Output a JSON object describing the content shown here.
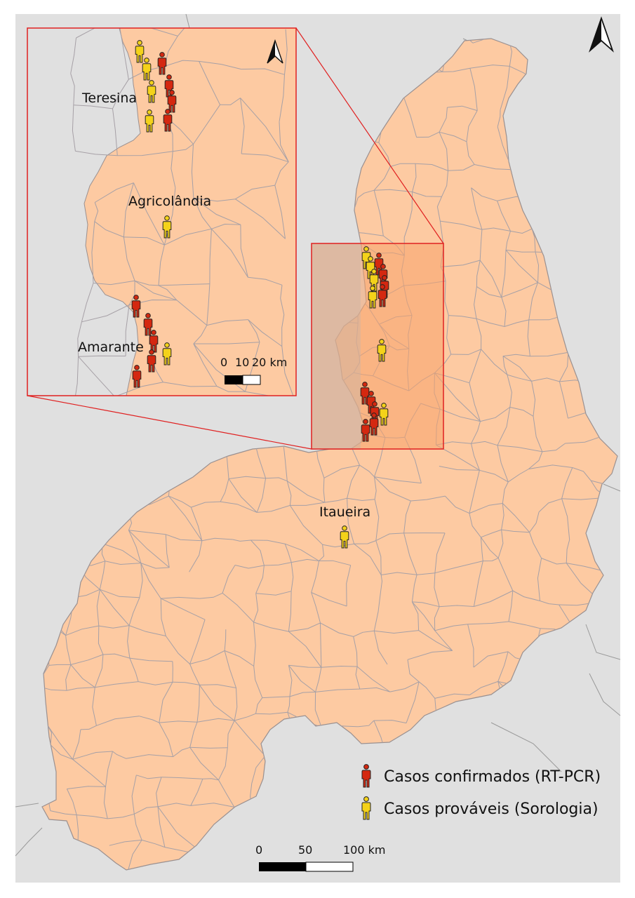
{
  "colors": {
    "background": "#e0e0e0",
    "state_fill": "#fdcaa2",
    "municipality_border": "#a6a0a6",
    "inset_border": "#e02020",
    "highlight_fill": "#f7a36a",
    "confirmed": "#d42810",
    "probable": "#f4d21a"
  },
  "places": {
    "teresina": "Teresina",
    "agricolandia": "Agricolândia",
    "amarante": "Amarante",
    "itaueira": "Itaueira"
  },
  "legend": {
    "confirmed_label": "Casos confirmados (RT-PCR)",
    "probable_label": "Casos prováveis (Sorologia)",
    "confirmed_icon": "person-icon-red",
    "probable_icon": "person-icon-yellow"
  },
  "scale_main": {
    "t0": "0",
    "t1": "50",
    "t2": "100 km"
  },
  "scale_inset": {
    "t0": "0",
    "t1": "10",
    "t2": "20 km"
  },
  "north_arrow": "north-arrow-icon",
  "case_counts": {
    "inset_confirmed": 10,
    "inset_probable": 7,
    "itaueira_probable": 1
  }
}
